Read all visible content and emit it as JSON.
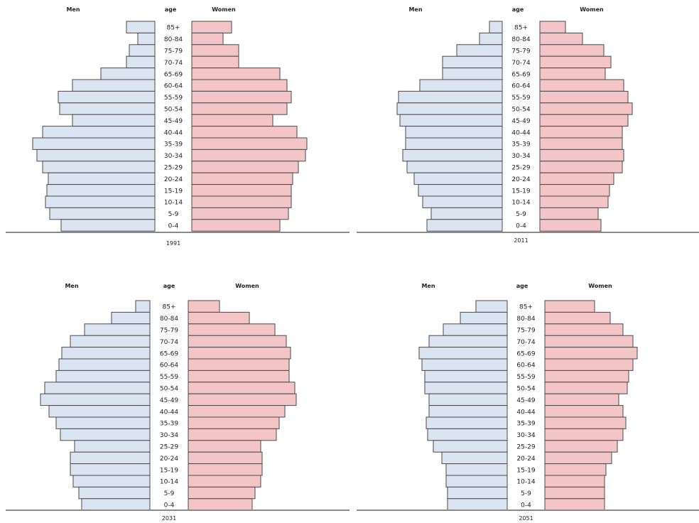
{
  "chart_data": [
    {
      "type": "bar",
      "title": "1991",
      "headers": {
        "men": "Men",
        "age": "age",
        "women": "Women"
      },
      "categories": [
        "85+",
        "80-84",
        "75-79",
        "70-74",
        "65-69",
        "60-64",
        "55-59",
        "50-54",
        "45-49",
        "40-44",
        "35-39",
        "30-34",
        "25-29",
        "20-24",
        "15-19",
        "10-14",
        "5-9",
        "0-4"
      ],
      "series": [
        {
          "name": "Men",
          "values": [
            20,
            12,
            18,
            20,
            38,
            58,
            68,
            67,
            58,
            79,
            86,
            83,
            79,
            75,
            76,
            77,
            74,
            66
          ]
        },
        {
          "name": "Women",
          "values": [
            28,
            22,
            33,
            33,
            62,
            67,
            70,
            67,
            57,
            74,
            81,
            80,
            75,
            71,
            70,
            70,
            68,
            62
          ]
        }
      ]
    },
    {
      "type": "bar",
      "title": "2011",
      "headers": {
        "men": "Men",
        "age": "age",
        "women": "Women"
      },
      "categories": [
        "85+",
        "80-84",
        "75-79",
        "70-74",
        "65-69",
        "60-64",
        "55-59",
        "50-54",
        "45-49",
        "40-44",
        "35-39",
        "30-34",
        "25-29",
        "20-24",
        "15-19",
        "10-14",
        "5-9",
        "0-4"
      ],
      "series": [
        {
          "name": "Men",
          "values": [
            9,
            16,
            32,
            42,
            42,
            58,
            73,
            74,
            72,
            68,
            68,
            70,
            67,
            62,
            59,
            56,
            50,
            53
          ]
        },
        {
          "name": "Women",
          "values": [
            18,
            30,
            45,
            50,
            46,
            59,
            62,
            65,
            62,
            58,
            58,
            59,
            58,
            52,
            49,
            48,
            41,
            43
          ]
        }
      ]
    },
    {
      "type": "bar",
      "title": "2031",
      "headers": {
        "men": "Men",
        "age": "age",
        "women": "Women"
      },
      "categories": [
        "85+",
        "80-84",
        "75-79",
        "70-74",
        "65-69",
        "60-64",
        "55-59",
        "50-54",
        "45-49",
        "40-44",
        "35-39",
        "30-34",
        "25-29",
        "20-24",
        "15-19",
        "10-14",
        "5-9",
        "0-4"
      ],
      "series": [
        {
          "name": "Men",
          "values": [
            10,
            27,
            46,
            56,
            62,
            64,
            66,
            74,
            77,
            71,
            66,
            63,
            53,
            56,
            56,
            54,
            50,
            48
          ]
        },
        {
          "name": "Women",
          "values": [
            22,
            43,
            61,
            69,
            72,
            71,
            71,
            75,
            76,
            68,
            64,
            62,
            51,
            52,
            52,
            51,
            47,
            45
          ]
        }
      ]
    },
    {
      "type": "bar",
      "title": "2051",
      "headers": {
        "men": "Men",
        "age": "age",
        "women": "Women"
      },
      "categories": [
        "85+",
        "80-84",
        "75-79",
        "70-74",
        "65-69",
        "60-64",
        "55-59",
        "50-54",
        "45-49",
        "40-44",
        "35-39",
        "30-34",
        "25-29",
        "20-24",
        "15-19",
        "10-14",
        "5-9",
        "0-4"
      ],
      "series": [
        {
          "name": "Men",
          "values": [
            22,
            33,
            45,
            55,
            62,
            60,
            58,
            58,
            55,
            55,
            57,
            56,
            52,
            46,
            43,
            43,
            42,
            42
          ]
        },
        {
          "name": "Women",
          "values": [
            35,
            46,
            55,
            62,
            65,
            62,
            59,
            58,
            52,
            55,
            57,
            55,
            51,
            47,
            43,
            42,
            42,
            42
          ]
        }
      ]
    }
  ],
  "colors": {
    "men": "#dbe5f1",
    "women": "#f4c5c7",
    "stroke": "#4a4a4a",
    "baseline": "#8a8a8a"
  }
}
